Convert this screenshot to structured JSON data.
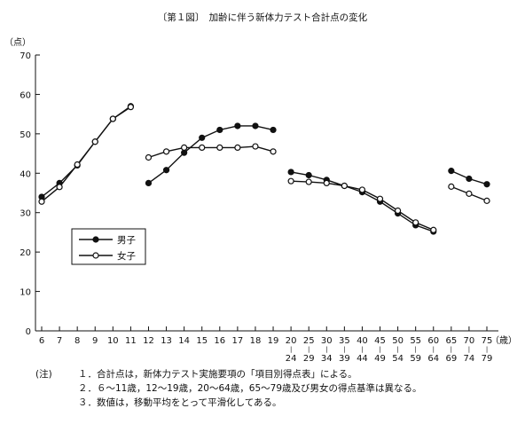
{
  "chart_data": {
    "type": "line",
    "title": "〔第１図〕　加齢に伴う新体力テスト合計点の変化",
    "ylabel": "（点）",
    "xunit": "（歳）",
    "ylim": [
      0,
      70
    ],
    "yticks": [
      0,
      10,
      20,
      30,
      40,
      50,
      60,
      70
    ],
    "grid": false,
    "legend_position": "center-left",
    "categories": [
      {
        "top": "6"
      },
      {
        "top": "7"
      },
      {
        "top": "8"
      },
      {
        "top": "9"
      },
      {
        "top": "10"
      },
      {
        "top": "11"
      },
      {
        "top": "12"
      },
      {
        "top": "13"
      },
      {
        "top": "14"
      },
      {
        "top": "15"
      },
      {
        "top": "16"
      },
      {
        "top": "17"
      },
      {
        "top": "18"
      },
      {
        "top": "19"
      },
      {
        "top": "20",
        "bottom": "24"
      },
      {
        "top": "25",
        "bottom": "29"
      },
      {
        "top": "30",
        "bottom": "34"
      },
      {
        "top": "35",
        "bottom": "39"
      },
      {
        "top": "40",
        "bottom": "44"
      },
      {
        "top": "45",
        "bottom": "49"
      },
      {
        "top": "50",
        "bottom": "54"
      },
      {
        "top": "55",
        "bottom": "59"
      },
      {
        "top": "60",
        "bottom": "64"
      },
      {
        "top": "65",
        "bottom": "69"
      },
      {
        "top": "70",
        "bottom": "74"
      },
      {
        "top": "75",
        "bottom": "79"
      }
    ],
    "series": [
      {
        "name": "男子",
        "marker": "filled",
        "segments": [
          {
            "x": [
              "6",
              "7",
              "8",
              "9",
              "10",
              "11"
            ],
            "y": [
              34.0,
              37.5,
              42.0,
              48.0,
              53.8,
              57.0
            ]
          },
          {
            "x": [
              "12",
              "13",
              "14",
              "15",
              "16",
              "17",
              "18",
              "19"
            ],
            "y": [
              37.5,
              40.8,
              45.2,
              49.0,
              51.0,
              52.0,
              52.0,
              51.0
            ]
          },
          {
            "x": [
              "20-24",
              "25-29",
              "30-34",
              "35-39",
              "40-44",
              "45-49",
              "50-54",
              "55-59",
              "60-64"
            ],
            "y": [
              40.3,
              39.5,
              38.3,
              36.8,
              35.2,
              32.8,
              29.8,
              26.8,
              25.2
            ]
          },
          {
            "x": [
              "65-69",
              "70-74",
              "75-79"
            ],
            "y": [
              40.6,
              38.6,
              37.2
            ]
          }
        ]
      },
      {
        "name": "女子",
        "marker": "open",
        "segments": [
          {
            "x": [
              "6",
              "7",
              "8",
              "9",
              "10",
              "11"
            ],
            "y": [
              32.8,
              36.5,
              42.2,
              48.0,
              53.8,
              56.8
            ]
          },
          {
            "x": [
              "12",
              "13",
              "14",
              "15",
              "16",
              "17",
              "18",
              "19"
            ],
            "y": [
              44.0,
              45.5,
              46.5,
              46.5,
              46.5,
              46.5,
              46.8,
              45.5
            ]
          },
          {
            "x": [
              "20-24",
              "25-29",
              "30-34",
              "35-39",
              "40-44",
              "45-49",
              "50-54",
              "55-59",
              "60-64"
            ],
            "y": [
              38.0,
              37.8,
              37.5,
              36.8,
              35.8,
              33.5,
              30.5,
              27.5,
              25.6
            ]
          },
          {
            "x": [
              "65-69",
              "70-74",
              "75-79"
            ],
            "y": [
              36.6,
              34.8,
              33.0
            ]
          }
        ]
      }
    ]
  },
  "notes": {
    "prefix": "(注)",
    "items": [
      "１．合計点は，新体力テスト実施要項の「項目別得点表」による。",
      "２．６～11歳，12～19歳，20～64歳，65～79歳及び男女の得点基準は異なる。",
      "３．数値は，移動平均をとって平滑化してある。"
    ]
  },
  "style": {
    "line_color": "#111111",
    "marker_fill": "#111111",
    "open_marker_fill": "#ffffff",
    "background": "#ffffff"
  }
}
